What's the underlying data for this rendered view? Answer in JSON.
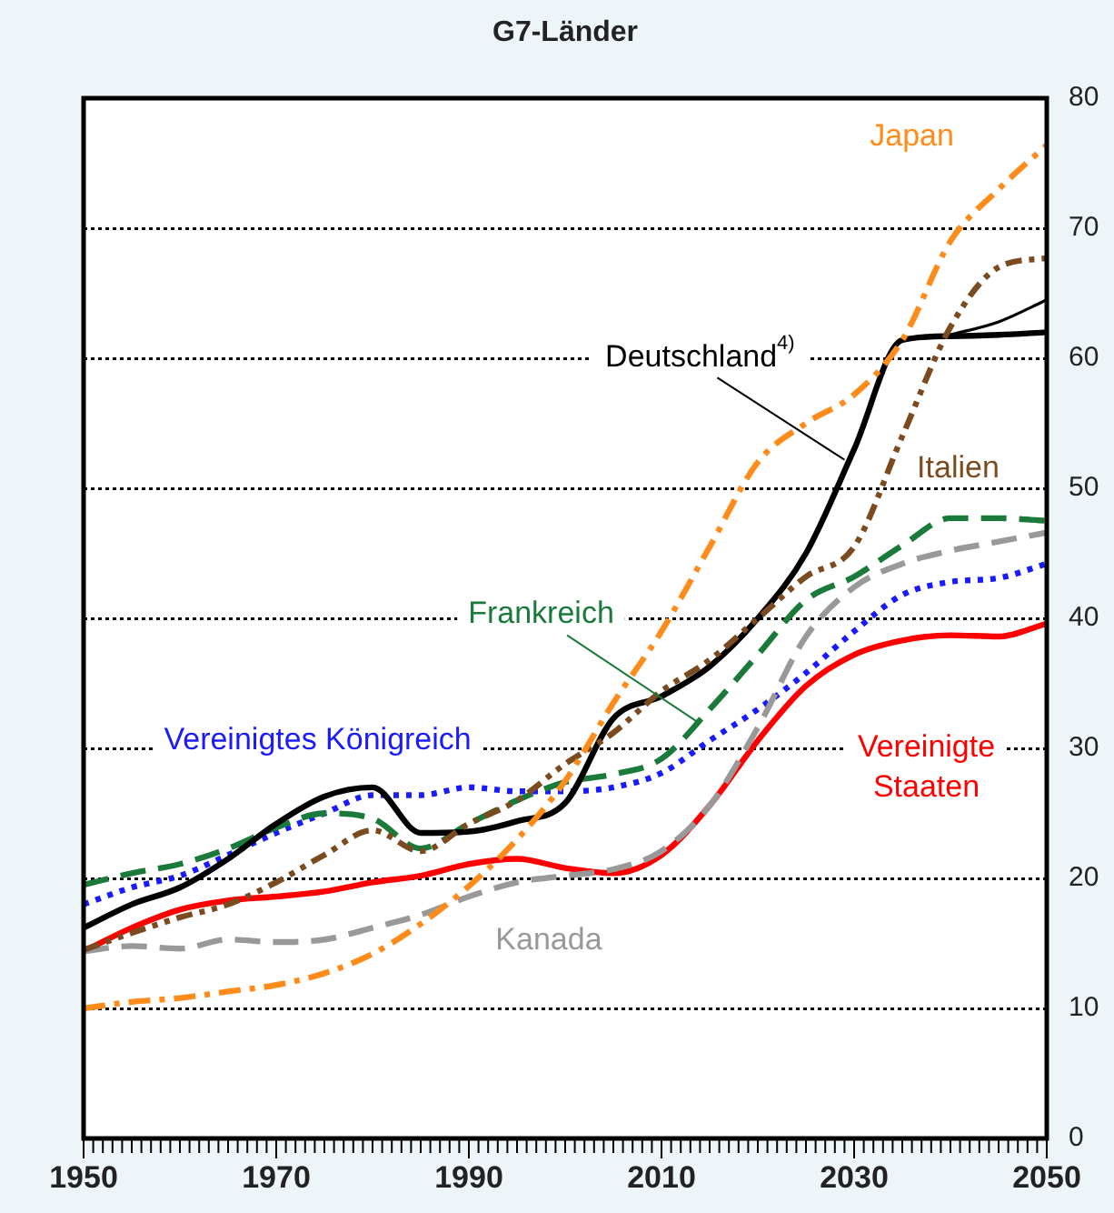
{
  "chart_data": {
    "type": "line",
    "title": "G7-Länder",
    "x": [
      1950,
      1955,
      1960,
      1965,
      1970,
      1975,
      1980,
      1985,
      1990,
      1995,
      2000,
      2005,
      2010,
      2015,
      2020,
      2025,
      2030,
      2035,
      2040,
      2045,
      2050
    ],
    "xlim": [
      1950,
      2050
    ],
    "xticks": [
      1950,
      1970,
      1990,
      2010,
      2030,
      2050
    ],
    "ylim": [
      0,
      80
    ],
    "yticks": [
      0,
      10,
      20,
      30,
      40,
      50,
      60,
      70,
      80
    ],
    "grid": "y",
    "legend": false,
    "series": [
      {
        "name": "Japan",
        "color": "#ff8c1a",
        "line_style": "dashdot",
        "values": [
          10,
          10.5,
          10.8,
          11.3,
          11.8,
          12.7,
          14.2,
          16.5,
          19.4,
          23,
          27.5,
          33.5,
          39,
          45.5,
          52,
          55,
          57.2,
          61.4,
          69,
          73,
          76.4
        ]
      },
      {
        "name": "Italien",
        "color": "#7b4a1e",
        "line_style": "dashdotdot",
        "values": [
          14.5,
          15.8,
          17,
          18,
          19.7,
          21.8,
          23.7,
          22.1,
          24.2,
          26,
          28.8,
          31.2,
          34.4,
          36.8,
          40,
          43.2,
          45.5,
          54,
          62.4,
          67,
          67.7
        ]
      },
      {
        "name": "Deutschland$^{4)}$",
        "color": "#000000",
        "line_style": "solid",
        "values": [
          16.2,
          18,
          19.3,
          21.5,
          24.2,
          26.3,
          27,
          23.5,
          23.6,
          24.4,
          25.8,
          32.3,
          34,
          36.3,
          40,
          45,
          53,
          61.4,
          61.7,
          61.8,
          62
        ]
      },
      {
        "color": "#000000",
        "line_style": "solid",
        "x": [
          2040,
          2045,
          2050
        ],
        "values": [
          61.8,
          62.8,
          64.5
        ]
      },
      {
        "name": "Frankreich",
        "color": "#1a7a3a",
        "line_style": "dashed",
        "values": [
          19.5,
          20.4,
          21.1,
          22.3,
          23.9,
          25,
          24.6,
          22.3,
          24.2,
          26,
          27.4,
          28,
          29.2,
          33,
          37.2,
          41.4,
          43.2,
          45.6,
          47.7,
          47.7,
          47.5
        ]
      },
      {
        "name": "Kanada",
        "color": "#999999",
        "line_style": "dashed",
        "values": [
          14.4,
          14.8,
          14.6,
          15.3,
          15.1,
          15.3,
          16.2,
          17.2,
          18.6,
          19.7,
          20.2,
          20.7,
          22.1,
          25.6,
          31.6,
          38.6,
          42.4,
          44.2,
          45.2,
          45.9,
          46.6
        ]
      },
      {
        "name": "Vereinigtes Königreich",
        "color": "#1a1aff",
        "line_style": "dotted",
        "values": [
          18,
          19.3,
          20.2,
          21.8,
          23.5,
          25,
          26.4,
          26.4,
          27,
          26.7,
          26.7,
          27,
          28.1,
          30.6,
          33,
          35.8,
          39,
          41.8,
          42.8,
          43.1,
          44.2
        ]
      },
      {
        "name": "Vereinigte Staaten",
        "color": "#ff0000",
        "line_style": "solid",
        "values": [
          14.4,
          16.2,
          17.6,
          18.3,
          18.6,
          19,
          19.7,
          20.2,
          21.1,
          21.5,
          20.8,
          20.4,
          21.8,
          25.6,
          30.6,
          34.8,
          37.2,
          38.3,
          38.7,
          38.6,
          39.6
        ]
      }
    ]
  }
}
